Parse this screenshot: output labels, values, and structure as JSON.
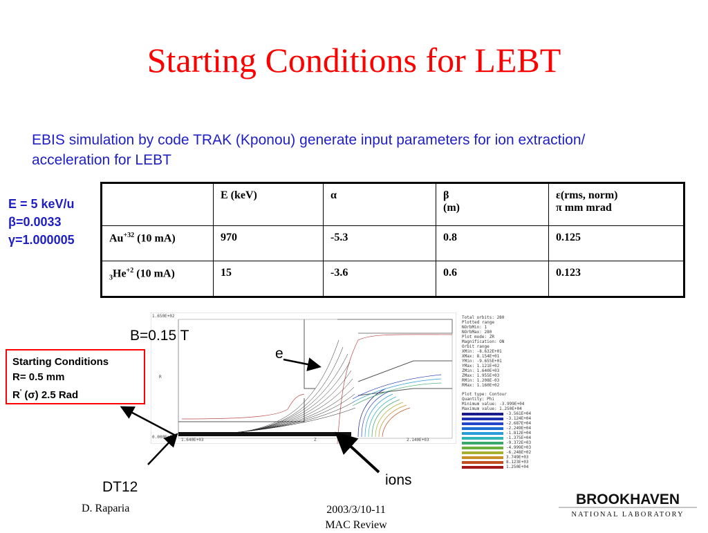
{
  "title": "Starting Conditions for LEBT",
  "intro": "EBIS simulation by code TRAK (Kponou) generate input parameters  for ion extraction/ acceleration for LEBT",
  "side_params": [
    "E = 5 keV/u",
    "β=0.0033",
    "γ=1.000005"
  ],
  "table": {
    "header": {
      "c1": "",
      "c2": "E (keV)",
      "c3": "α",
      "c4_line1": "β",
      "c4_line2": "(m)",
      "c5_line1": "ε(rms, norm)",
      "c5_line2": "π mm mrad"
    },
    "rows": [
      {
        "ion": "Au",
        "charge": "+32",
        "current": " (10 mA)",
        "E": "970",
        "alpha": "-5.3",
        "beta": "0.8",
        "eps": "0.125"
      },
      {
        "mass": "3",
        "ion": "He",
        "charge": "+2",
        "current": " (10 mA)",
        "E": "15",
        "alpha": "-3.6",
        "beta": "0.6",
        "eps": "0.123"
      }
    ]
  },
  "labels": {
    "b_field": "B=0.15 T",
    "electrons": "e",
    "ions": "ions",
    "dt12": "DT12"
  },
  "conditions_box": {
    "line1": "Starting Conditions",
    "line2": "R= 0.5 mm",
    "line3_a": "R",
    "line3_prime": "'",
    "line3_b": " (σ) 2.5 Rad"
  },
  "plot": {
    "y_top_label": "1.650E+02",
    "y_bottom_label": "0.000E+00",
    "x_left_label": "1.640E+03",
    "x_mid_label": "Z",
    "x_right_label": "2.140E+03",
    "y_axis_label": "R"
  },
  "legend_text": [
    "Total orbits: 280",
    "Plotted range",
    "  NOrbMin:   1",
    "  NOrbMax: 280",
    "Plot mode: ZR",
    "Magnification: ON",
    "Orbit range",
    "  XMin:  -8.632E+01",
    "  XMax:   8.154E+01",
    "  YMin:  -9.655E+01",
    "  YMax:   1.121E+02",
    "  ZMin:   1.640E+03",
    "  ZMax:   1.955E+03",
    "  RMin:   1.208E-03",
    "  RMax:   1.160E+02"
  ],
  "legend_contour": [
    "Plot type: Contour",
    "Quantity: Phi",
    "Minimum value:  -3.999E+04",
    "Maximum value:   1.250E+04"
  ],
  "legend_scale": [
    "-3.561E+04",
    "-3.124E+04",
    "-2.687E+04",
    "-2.249E+04",
    "-1.812E+04",
    "-1.375E+04",
    "-9.372E+03",
    "-4.999E+03",
    "-6.248E+02",
    "3.749E+03",
    "8.123E+03",
    "1.250E+04"
  ],
  "legend_colors": [
    "#1a1a8c",
    "#1f2fb0",
    "#2447c8",
    "#1e6fd2",
    "#2a9ad8",
    "#30b4b8",
    "#3aa86a",
    "#6ab040",
    "#a8b030",
    "#c89028",
    "#c05020",
    "#a01818"
  ],
  "footer": {
    "author": "D. Raparia",
    "date": "2003/3/10-11",
    "event": "MAC Review"
  },
  "logo": {
    "name": "BROOKHAVEN",
    "sub": "NATIONAL LABORATORY"
  },
  "colors": {
    "title": "#ff0000",
    "text_blue": "#1e1ec8",
    "box_border": "#ff0000"
  }
}
